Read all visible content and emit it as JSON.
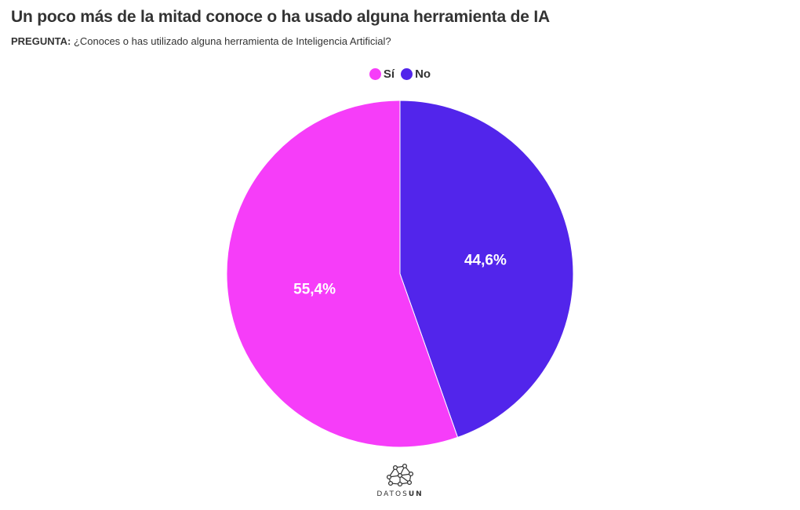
{
  "header": {
    "title": "Un poco más de la mitad conoce o ha usado alguna herramienta de IA",
    "question_label": "PREGUNTA:",
    "question_text": "¿Conoces o has utilizado alguna herramienta de Inteligencia Artificial?"
  },
  "legend": [
    {
      "label": "Sí",
      "color": "#f63df9"
    },
    {
      "label": "No",
      "color": "#5225eb"
    }
  ],
  "chart_data": {
    "type": "pie",
    "title": "Un poco más de la mitad conoce o ha usado alguna herramienta de IA",
    "slices": [
      {
        "label": "Sí",
        "value": 55.4,
        "display": "55,4%",
        "color": "#f63df9"
      },
      {
        "label": "No",
        "value": 44.6,
        "display": "44,6%",
        "color": "#5225eb"
      }
    ],
    "legend_position": "top-center"
  },
  "footer": {
    "logo_text_light": "DATOS",
    "logo_text_bold": "UN",
    "logo_icon": "network-icon"
  }
}
